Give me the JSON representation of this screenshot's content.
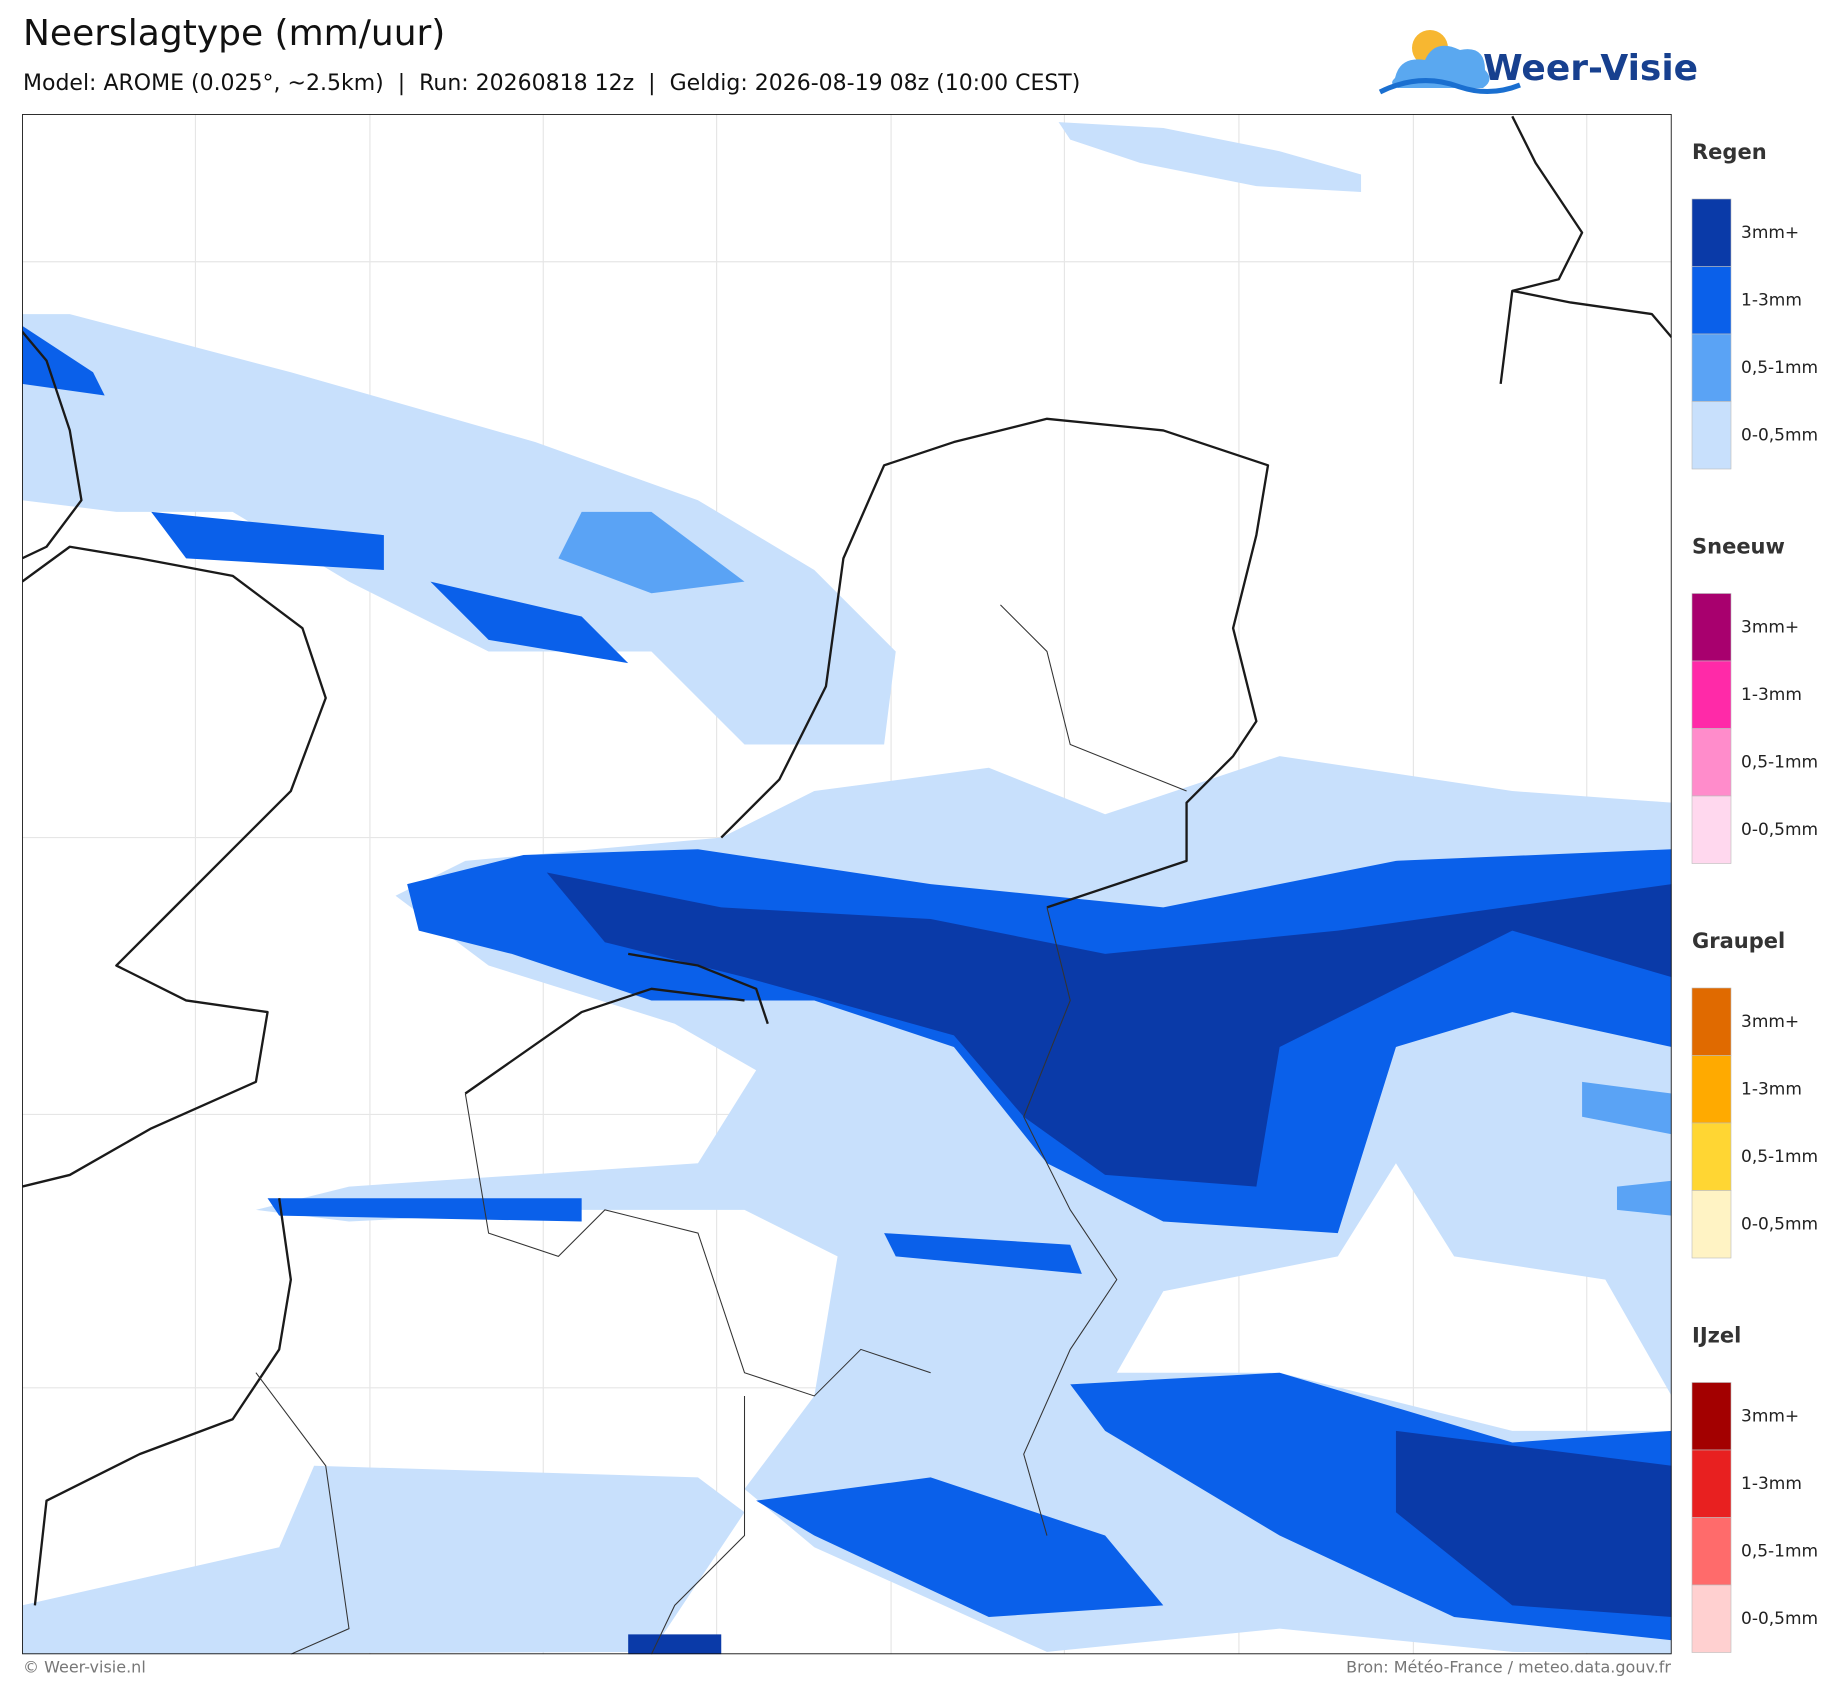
{
  "header": {
    "title": "Neerslagtype (mm/uur)",
    "subtitle": "Model: AROME (0.025°, ~2.5km)  |  Run: 20260818 12z  |  Geldig: 2026-08-19 08z (10:00 CEST)",
    "logo": "Weer-Visie"
  },
  "legend": [
    {
      "title": "Regen",
      "items": [
        {
          "label": "3mm+",
          "color": "#0a3aa8"
        },
        {
          "label": "1-3mm",
          "color": "#0a60ea"
        },
        {
          "label": "0,5-1mm",
          "color": "#5aa3f5"
        },
        {
          "label": "0-0,5mm",
          "color": "#c8e0fc"
        }
      ]
    },
    {
      "title": "Sneeuw",
      "items": [
        {
          "label": "3mm+",
          "color": "#a8006e"
        },
        {
          "label": "1-3mm",
          "color": "#ff2aa8"
        },
        {
          "label": "0,5-1mm",
          "color": "#ff8ccb"
        },
        {
          "label": "0-0,5mm",
          "color": "#ffd8ee"
        }
      ]
    },
    {
      "title": "Graupel",
      "items": [
        {
          "label": "3mm+",
          "color": "#e06a00"
        },
        {
          "label": "1-3mm",
          "color": "#ffaa00"
        },
        {
          "label": "0,5-1mm",
          "color": "#ffd633"
        },
        {
          "label": "0-0,5mm",
          "color": "#fff3c4"
        }
      ]
    },
    {
      "title": "IJzel",
      "items": [
        {
          "label": "3mm+",
          "color": "#a30000"
        },
        {
          "label": "1-3mm",
          "color": "#e82020"
        },
        {
          "label": "0,5-1mm",
          "color": "#ff6b6b"
        },
        {
          "label": "0-0,5mm",
          "color": "#ffd0d0"
        }
      ]
    }
  ],
  "footer": {
    "left": "© Weer-visie.nl",
    "right": "Bron: Météo-France / meteo.data.gouv.fr"
  }
}
